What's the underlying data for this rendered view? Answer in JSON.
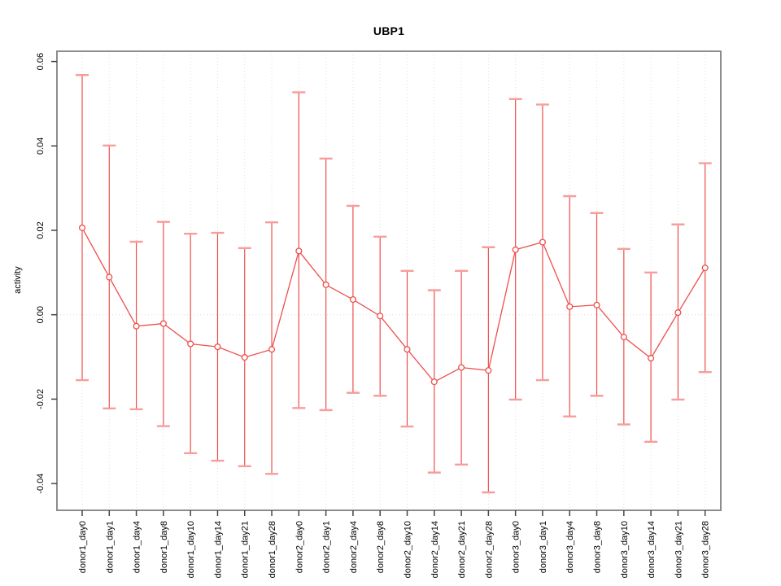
{
  "chart_data": {
    "type": "line",
    "subtype": "points-with-error-bars",
    "title": "UBP1",
    "xlabel": "",
    "ylabel": "activity",
    "legend": "none",
    "grid": "vertical-dotted-per-category-plus-dotted-zero-line",
    "ylim": [
      -0.046,
      0.062
    ],
    "y_ticks": [
      -0.04,
      -0.02,
      0.0,
      0.02,
      0.04,
      0.06
    ],
    "y_tick_labels": [
      "-0.04",
      "-0.02",
      "0.00",
      "0.02",
      "0.04",
      "0.06"
    ],
    "categories": [
      "donor1_day0",
      "donor1_day1",
      "donor1_day4",
      "donor1_day8",
      "donor1_day10",
      "donor1_day14",
      "donor1_day21",
      "donor1_day28",
      "donor2_day0",
      "donor2_day1",
      "donor2_day4",
      "donor2_day8",
      "donor2_day10",
      "donor2_day14",
      "donor2_day21",
      "donor2_day28",
      "donor3_day0",
      "donor3_day1",
      "donor3_day4",
      "donor3_day8",
      "donor3_day10",
      "donor3_day14",
      "donor3_day21",
      "donor3_day28"
    ],
    "series": [
      {
        "name": "activity",
        "means": [
          0.0206,
          0.0089,
          -0.0027,
          -0.0021,
          -0.0069,
          -0.0076,
          -0.0101,
          -0.0082,
          0.0151,
          0.0071,
          0.0036,
          -0.0003,
          -0.0082,
          -0.0159,
          -0.0125,
          -0.0132,
          0.0154,
          0.0172,
          0.0019,
          0.0023,
          -0.0053,
          -0.0103,
          0.0005,
          0.0111
        ],
        "upper": [
          0.0568,
          0.0401,
          0.0173,
          0.022,
          0.0192,
          0.0194,
          0.0158,
          0.0219,
          0.0527,
          0.037,
          0.0258,
          0.0185,
          0.0104,
          0.0058,
          0.0104,
          0.016,
          0.0511,
          0.0498,
          0.0281,
          0.0241,
          0.0156,
          0.01,
          0.0214,
          0.0359
        ],
        "lower": [
          -0.0155,
          -0.0222,
          -0.0224,
          -0.0264,
          -0.0328,
          -0.0346,
          -0.0359,
          -0.0377,
          -0.0221,
          -0.0226,
          -0.0185,
          -0.0192,
          -0.0265,
          -0.0374,
          -0.0355,
          -0.0421,
          -0.0201,
          -0.0155,
          -0.0241,
          -0.0192,
          -0.026,
          -0.0301,
          -0.0201,
          -0.0136
        ]
      }
    ],
    "colors": {
      "series_red": "#ee4f4b",
      "error_cap_red": "#f79d9b",
      "gridline_gray": "#e0e0e0",
      "zero_line_gray": "#d8d8d8",
      "box_gray": "#8c8c8c",
      "tick_gray": "#444444",
      "label_black": "#000000"
    }
  }
}
